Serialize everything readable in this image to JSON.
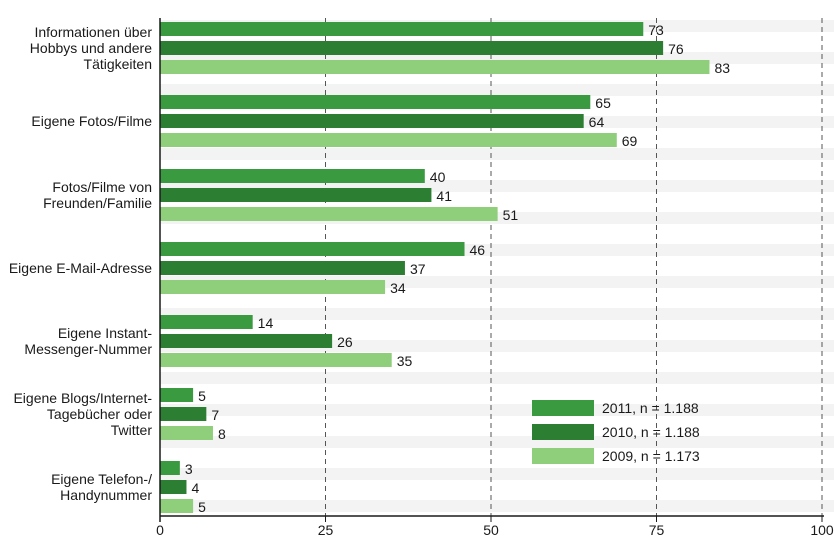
{
  "chart_data": {
    "type": "bar",
    "orientation": "horizontal",
    "categories": [
      "Informationen über\nHobbys und andere\nTätigkeiten",
      "Eigene Fotos/Filme",
      "Fotos/Filme von\nFreunden/Familie",
      "Eigene E-Mail-Adresse",
      "Eigene Instant-\nMessenger-Nummer",
      "Eigene Blogs/Internet-\nTagebücher oder\nTwitter",
      "Eigene Telefon-/\nHandynummer"
    ],
    "series": [
      {
        "name": "2011, n = 1.188",
        "color": "#3a9a3f",
        "values": [
          73,
          65,
          40,
          46,
          14,
          5,
          3
        ]
      },
      {
        "name": "2010, n = 1.188",
        "color": "#2c7f32",
        "values": [
          76,
          64,
          41,
          37,
          26,
          7,
          4
        ]
      },
      {
        "name": "2009, n = 1.173",
        "color": "#8fce7a",
        "values": [
          83,
          69,
          51,
          34,
          35,
          8,
          5
        ]
      }
    ],
    "xlim": [
      0,
      100
    ],
    "xticks": [
      "0",
      "25",
      "50",
      "75",
      "100"
    ],
    "grid": true,
    "legend_position": "bottom-right"
  }
}
